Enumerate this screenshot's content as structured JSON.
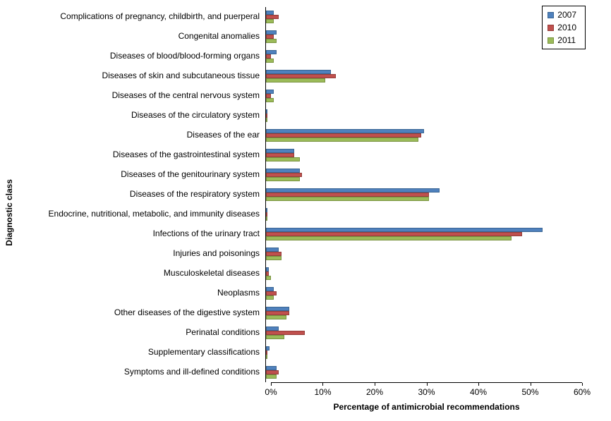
{
  "chart_data": {
    "type": "bar",
    "orientation": "horizontal",
    "title": "",
    "xlabel": "Percentage of antimicrobial recommendations",
    "ylabel": "Diagnostic class",
    "xlim": [
      0,
      60
    ],
    "x_ticks": [
      "0%",
      "10%",
      "20%",
      "30%",
      "40%",
      "50%",
      "60%"
    ],
    "grid": false,
    "legend_position": "top-right",
    "categories": [
      "Complications of pregnancy, childbirth, and puerperal",
      "Congenital anomalies",
      "Diseases of blood/blood-forming organs",
      "Diseases of skin and subcutaneous tissue",
      "Diseases of the central nervous system",
      "Diseases of the circulatory system",
      "Diseases of the ear",
      "Diseases of the gastrointestinal system",
      "Diseases of the genitourinary system",
      "Diseases of the respiratory system",
      "Endocrine, nutritional, metabolic, and immunity diseases",
      "Infections of the urinary tract",
      "Injuries and poisonings",
      "Musculoskeletal diseases",
      "Neoplasms",
      "Other diseases of the digestive system",
      "Perinatal conditions",
      "Supplementary classifications",
      "Symptoms and ill-defined conditions"
    ],
    "series": [
      {
        "name": "2007",
        "color": "#4F81BD",
        "border": "#3A6593",
        "values": [
          1.5,
          2.0,
          2.0,
          12.5,
          1.5,
          0.2,
          30.5,
          5.5,
          6.5,
          33.5,
          0.3,
          53.5,
          2.5,
          0.5,
          1.5,
          4.5,
          2.5,
          0.7,
          2.0
        ]
      },
      {
        "name": "2010",
        "color": "#C0504D",
        "border": "#943D3A",
        "values": [
          2.5,
          1.5,
          1.0,
          13.5,
          1.0,
          0.2,
          30.0,
          5.5,
          7.0,
          31.5,
          0.3,
          49.5,
          3.0,
          0.5,
          2.0,
          4.5,
          7.5,
          0.3,
          2.5
        ]
      },
      {
        "name": "2011",
        "color": "#9BBB59",
        "border": "#7A9441",
        "values": [
          1.5,
          2.0,
          1.5,
          11.5,
          1.5,
          0.2,
          29.5,
          6.5,
          6.5,
          31.5,
          0.2,
          47.5,
          3.0,
          1.0,
          1.5,
          4.0,
          3.5,
          0.3,
          2.0
        ]
      }
    ]
  }
}
